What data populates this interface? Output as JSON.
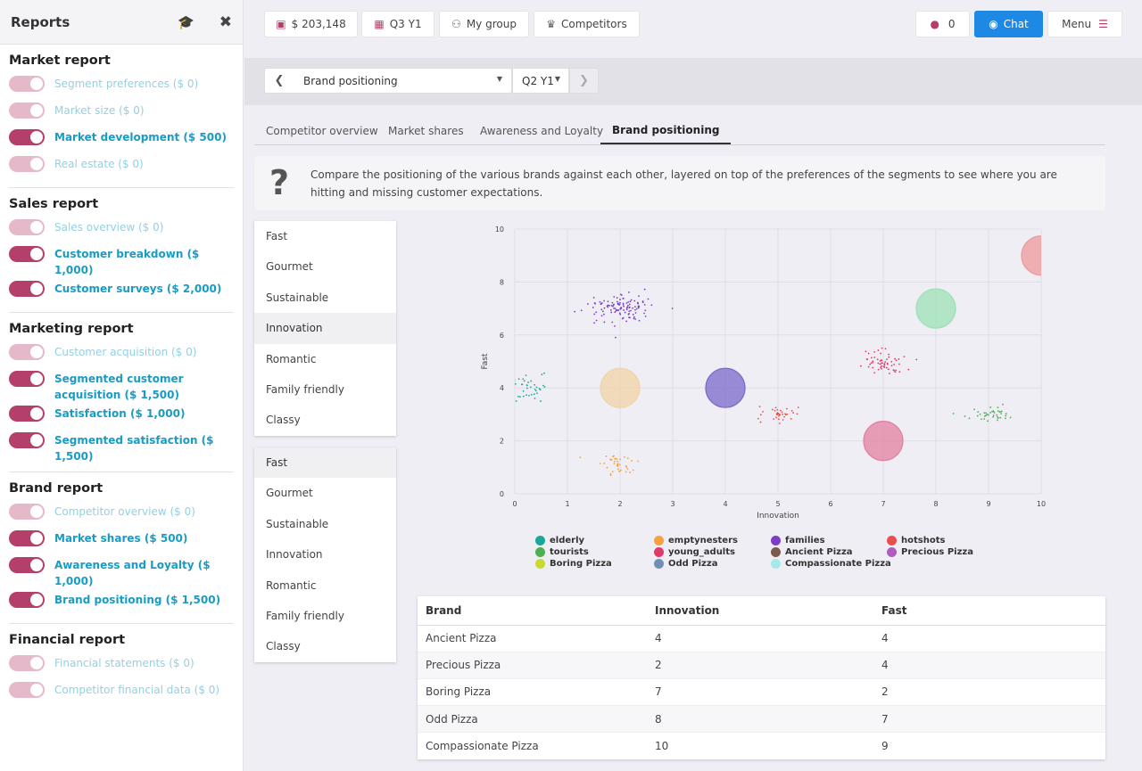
{
  "sidebar": {
    "title": "Reports",
    "cap_icon": "graduation-cap-icon",
    "close_icon": "close-icon",
    "sections": [
      {
        "title": "Market report",
        "items": [
          {
            "label": "Segment preferences ($ 0)",
            "on": false
          },
          {
            "label": "Market size ($ 0)",
            "on": false
          },
          {
            "label": "Market development ($ 500)",
            "on": true
          },
          {
            "label": "Real estate ($ 0)",
            "on": false
          }
        ]
      },
      {
        "title": "Sales report",
        "items": [
          {
            "label": "Sales overview ($ 0)",
            "on": false
          },
          {
            "label": "Customer breakdown ($ 1,000)",
            "on": true
          },
          {
            "label": "Customer surveys ($ 2,000)",
            "on": true
          }
        ]
      },
      {
        "title": "Marketing report",
        "items": [
          {
            "label": "Customer acquisition ($ 0)",
            "on": false
          },
          {
            "label": "Segmented customer acquisition ($ 1,500)",
            "on": true
          },
          {
            "label": "Satisfaction ($ 1,000)",
            "on": true
          },
          {
            "label": "Segmented satisfaction ($ 1,500)",
            "on": true
          }
        ]
      },
      {
        "title": "Brand report",
        "items": [
          {
            "label": "Competitor overview ($ 0)",
            "on": false
          },
          {
            "label": "Market shares ($ 500)",
            "on": true
          },
          {
            "label": "Awareness and Loyalty ($ 1,000)",
            "on": true
          },
          {
            "label": "Brand positioning ($ 1,500)",
            "on": true
          }
        ]
      },
      {
        "title": "Financial report",
        "items": [
          {
            "label": "Financial statements ($ 0)",
            "on": false
          },
          {
            "label": "Competitor financial data ($ 0)",
            "on": false
          }
        ]
      }
    ]
  },
  "topbar": {
    "cash": "$ 203,148",
    "period": "Q3 Y1",
    "group": "My group",
    "competitors": "Competitors",
    "notifications": "0",
    "chat": "Chat",
    "menu": "Menu"
  },
  "report_select": {
    "value": "Brand positioning",
    "quarter": "Q2 Y1"
  },
  "tabs": [
    {
      "label": "Competitor overview",
      "active": false
    },
    {
      "label": "Market shares",
      "active": false
    },
    {
      "label": "Awareness and Loyalty",
      "active": false
    },
    {
      "label": "Brand positioning",
      "active": true
    }
  ],
  "info": {
    "icon": "question-icon",
    "text": "Compare the positioning of the various brands against each other, layered on top of the preferences of the segments to see where you are hitting and missing customer expectations."
  },
  "x_attributes": {
    "options": [
      "Fast",
      "Gourmet",
      "Sustainable",
      "Innovation",
      "Romantic",
      "Family friendly",
      "Classy"
    ],
    "selected": "Innovation"
  },
  "y_attributes": {
    "options": [
      "Fast",
      "Gourmet",
      "Sustainable",
      "Innovation",
      "Romantic",
      "Family friendly",
      "Classy"
    ],
    "selected": "Fast"
  },
  "chart_data": {
    "type": "scatter",
    "title": "",
    "xlabel": "Innovation",
    "ylabel": "Fast",
    "xlim": [
      0,
      10
    ],
    "ylim": [
      0,
      10
    ],
    "xticks": [
      "0",
      "1",
      "2",
      "3",
      "4",
      "5",
      "6",
      "7",
      "8",
      "9",
      "10"
    ],
    "yticks": [
      "0",
      "2",
      "4",
      "6",
      "8",
      "10"
    ],
    "grid": true,
    "segments": [
      {
        "name": "elderly",
        "color": "#1aa79a",
        "center": [
          0.1,
          4.0
        ],
        "spread": [
          0.25,
          0.25
        ],
        "count": 60
      },
      {
        "name": "emptynesters",
        "color": "#f6a13c",
        "center": [
          2.0,
          1.1
        ],
        "spread": [
          0.18,
          0.22
        ],
        "count": 40
      },
      {
        "name": "families",
        "color": "#7a3fc4",
        "center": [
          2.0,
          7.0
        ],
        "spread": [
          0.3,
          0.25
        ],
        "count": 120
      },
      {
        "name": "hotshots",
        "color": "#e84f4f",
        "center": [
          5.0,
          3.0
        ],
        "spread": [
          0.22,
          0.15
        ],
        "count": 35
      },
      {
        "name": "tourists",
        "color": "#4caf50",
        "center": [
          9.0,
          3.0
        ],
        "spread": [
          0.25,
          0.15
        ],
        "count": 40
      },
      {
        "name": "young_adults",
        "color": "#e0396a",
        "center": [
          7.0,
          5.0
        ],
        "spread": [
          0.22,
          0.22
        ],
        "count": 60
      }
    ],
    "brands": [
      {
        "name": "Ancient Pizza",
        "color": "#7a5b4e",
        "fill": "#7b68c9",
        "x": 4,
        "y": 4
      },
      {
        "name": "Precious Pizza",
        "color": "#b05cc1",
        "fill": "#f0d3a6",
        "x": 2,
        "y": 4
      },
      {
        "name": "Boring Pizza",
        "color": "#c8d932",
        "fill": "#e1809e",
        "x": 7,
        "y": 2
      },
      {
        "name": "Odd Pizza",
        "color": "#6f8fb5",
        "fill": "#9de0b5",
        "x": 8,
        "y": 7
      },
      {
        "name": "Compassionate Pizza",
        "color": "#a6e9ea",
        "fill": "#ec9a9a",
        "x": 10,
        "y": 9
      }
    ]
  },
  "legend": [
    {
      "name": "elderly",
      "color": "#1aa79a"
    },
    {
      "name": "emptynesters",
      "color": "#f6a13c"
    },
    {
      "name": "families",
      "color": "#7a3fc4"
    },
    {
      "name": "hotshots",
      "color": "#e84f4f"
    },
    {
      "name": "tourists",
      "color": "#4caf50"
    },
    {
      "name": "young_adults",
      "color": "#e0396a"
    },
    {
      "name": "Ancient Pizza",
      "color": "#7a5b4e"
    },
    {
      "name": "Precious Pizza",
      "color": "#b05cc1"
    },
    {
      "name": "Boring Pizza",
      "color": "#c8d932"
    },
    {
      "name": "Odd Pizza",
      "color": "#6f8fb5"
    },
    {
      "name": "Compassionate Pizza",
      "color": "#a6e9ea"
    }
  ],
  "table": {
    "headers": [
      "Brand",
      "Innovation",
      "Fast"
    ],
    "rows": [
      [
        "Ancient Pizza",
        "4",
        "4"
      ],
      [
        "Precious Pizza",
        "2",
        "4"
      ],
      [
        "Boring Pizza",
        "7",
        "2"
      ],
      [
        "Odd Pizza",
        "8",
        "7"
      ],
      [
        "Compassionate Pizza",
        "10",
        "9"
      ]
    ]
  }
}
